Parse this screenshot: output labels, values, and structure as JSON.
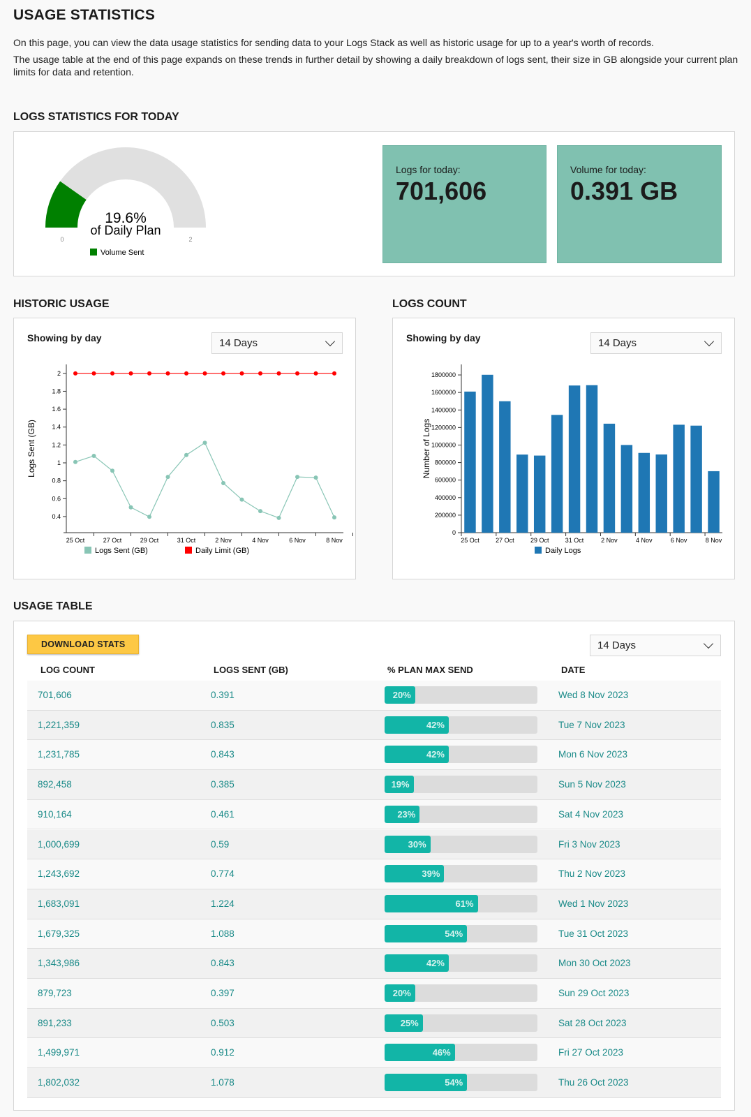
{
  "header": {
    "title": "USAGE STATISTICS",
    "intro": [
      "On this page, you can view the data usage statistics for sending data to your Logs Stack as well as historic usage for up to a year's worth of records.",
      "The usage table at the end of this page expands on these trends in further detail by showing a daily breakdown of logs sent, their size in GB alongside your current plan limits for data and retention."
    ]
  },
  "today": {
    "heading": "LOGS STATISTICS FOR TODAY",
    "gauge": {
      "percent": 19.6,
      "percent_label": "19.6%",
      "sub_label": "of Daily Plan",
      "min_label": "0",
      "max_label": "2",
      "legend": "Volume Sent",
      "fill_color": "#008000",
      "track_color": "#e0e0e0"
    },
    "logs_label": "Logs for today:",
    "logs_value": "701,606",
    "volume_label": "Volume for today:",
    "volume_value": "0.391 GB"
  },
  "historic": {
    "heading": "HISTORIC USAGE",
    "showing": "Showing by day",
    "range": "14 Days"
  },
  "logs_count": {
    "heading": "LOGS COUNT",
    "showing": "Showing by day",
    "range": "14 Days"
  },
  "chart_data": [
    {
      "type": "line",
      "ylabel": "Logs Sent (GB)",
      "ylim": [
        0.22,
        2.1
      ],
      "yticks": [
        "0.4",
        "0.6",
        "0.8",
        "1",
        "1.2",
        "1.4",
        "1.6",
        "1.8",
        "2"
      ],
      "x": [
        "25 Oct",
        "26 Oct",
        "27 Oct",
        "28 Oct",
        "29 Oct",
        "30 Oct",
        "31 Oct",
        "1 Nov",
        "2 Nov",
        "3 Nov",
        "4 Nov",
        "5 Nov",
        "6 Nov",
        "7 Nov",
        "8 Nov"
      ],
      "xticks": [
        "25 Oct",
        "27 Oct",
        "29 Oct",
        "31 Oct",
        "2 Nov",
        "4 Nov",
        "6 Nov",
        "8 Nov"
      ],
      "series": [
        {
          "name": "Logs Sent (GB)",
          "color": "#88c5b5",
          "values": [
            1.01,
            1.078,
            0.912,
            0.503,
            0.397,
            0.843,
            1.088,
            1.224,
            0.774,
            0.59,
            0.461,
            0.385,
            0.843,
            0.835,
            0.391
          ]
        },
        {
          "name": "Daily Limit (GB)",
          "color": "#ff0000",
          "values": [
            2,
            2,
            2,
            2,
            2,
            2,
            2,
            2,
            2,
            2,
            2,
            2,
            2,
            2,
            2
          ]
        }
      ],
      "legend": "bottom",
      "grid": false
    },
    {
      "type": "bar",
      "ylabel": "Number of Logs",
      "ylim": [
        0,
        1920000
      ],
      "yticks": [
        "0",
        "200000",
        "400000",
        "600000",
        "800000",
        "1000000",
        "1200000",
        "1400000",
        "1600000",
        "1800000"
      ],
      "x": [
        "25 Oct",
        "26 Oct",
        "27 Oct",
        "28 Oct",
        "29 Oct",
        "30 Oct",
        "31 Oct",
        "1 Nov",
        "2 Nov",
        "3 Nov",
        "4 Nov",
        "5 Nov",
        "6 Nov",
        "7 Nov",
        "8 Nov"
      ],
      "xticks": [
        "25 Oct",
        "27 Oct",
        "29 Oct",
        "31 Oct",
        "2 Nov",
        "4 Nov",
        "6 Nov",
        "8 Nov"
      ],
      "series": [
        {
          "name": "Daily Logs",
          "color": "#1f77b4",
          "values": [
            1610000,
            1802032,
            1499971,
            891233,
            879723,
            1343986,
            1679325,
            1683091,
            1243692,
            1000699,
            910164,
            892458,
            1231785,
            1221359,
            701606
          ]
        }
      ],
      "legend": "bottom",
      "grid": false
    }
  ],
  "usage_table": {
    "heading": "USAGE TABLE",
    "download_label": "DOWNLOAD STATS",
    "range": "14 Days",
    "columns": [
      "LOG COUNT",
      "LOGS SENT (GB)",
      "% PLAN MAX SEND",
      "DATE"
    ],
    "rows": [
      {
        "count": "701,606",
        "gb": "0.391",
        "pct": 20,
        "pct_label": "20%",
        "date": "Wed 8 Nov 2023"
      },
      {
        "count": "1,221,359",
        "gb": "0.835",
        "pct": 42,
        "pct_label": "42%",
        "date": "Tue 7 Nov 2023"
      },
      {
        "count": "1,231,785",
        "gb": "0.843",
        "pct": 42,
        "pct_label": "42%",
        "date": "Mon 6 Nov 2023"
      },
      {
        "count": "892,458",
        "gb": "0.385",
        "pct": 19,
        "pct_label": "19%",
        "date": "Sun 5 Nov 2023"
      },
      {
        "count": "910,164",
        "gb": "0.461",
        "pct": 23,
        "pct_label": "23%",
        "date": "Sat 4 Nov 2023"
      },
      {
        "count": "1,000,699",
        "gb": "0.59",
        "pct": 30,
        "pct_label": "30%",
        "date": "Fri 3 Nov 2023"
      },
      {
        "count": "1,243,692",
        "gb": "0.774",
        "pct": 39,
        "pct_label": "39%",
        "date": "Thu 2 Nov 2023"
      },
      {
        "count": "1,683,091",
        "gb": "1.224",
        "pct": 61,
        "pct_label": "61%",
        "date": "Wed 1 Nov 2023"
      },
      {
        "count": "1,679,325",
        "gb": "1.088",
        "pct": 54,
        "pct_label": "54%",
        "date": "Tue 31 Oct 2023"
      },
      {
        "count": "1,343,986",
        "gb": "0.843",
        "pct": 42,
        "pct_label": "42%",
        "date": "Mon 30 Oct 2023"
      },
      {
        "count": "879,723",
        "gb": "0.397",
        "pct": 20,
        "pct_label": "20%",
        "date": "Sun 29 Oct 2023"
      },
      {
        "count": "891,233",
        "gb": "0.503",
        "pct": 25,
        "pct_label": "25%",
        "date": "Sat 28 Oct 2023"
      },
      {
        "count": "1,499,971",
        "gb": "0.912",
        "pct": 46,
        "pct_label": "46%",
        "date": "Fri 27 Oct 2023"
      },
      {
        "count": "1,802,032",
        "gb": "1.078",
        "pct": 54,
        "pct_label": "54%",
        "date": "Thu 26 Oct 2023"
      }
    ]
  }
}
